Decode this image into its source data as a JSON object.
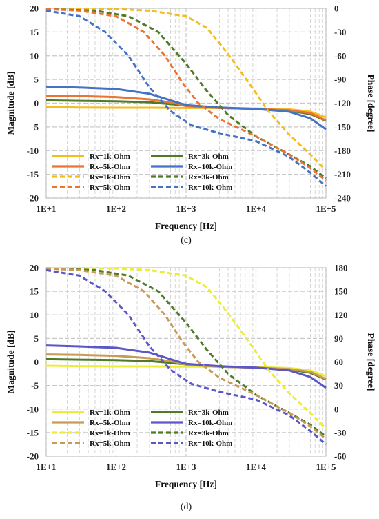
{
  "chart_data": [
    {
      "type": "line",
      "caption": "(c)",
      "x_label": "Frequency [Hz]",
      "y_label": "Magnitude [dB]",
      "y2_label": "Phase [degree]",
      "x_scale": "log",
      "x_ticks": [
        "1E+1",
        "1E+2",
        "1E+3",
        "1E+4",
        "1E+5"
      ],
      "xlim": [
        10,
        100000
      ],
      "ylim": [
        -20,
        20
      ],
      "y_ticks": [
        20,
        15,
        10,
        5,
        0,
        -5,
        -10,
        -15,
        -20
      ],
      "y2lim": [
        -240,
        0
      ],
      "y2_ticks": [
        0,
        -30,
        -60,
        -90,
        -120,
        -150,
        -180,
        -210,
        -240
      ],
      "grid": true,
      "legend_position": "lower-left",
      "colors": {
        "1k": "#f2bd1d",
        "3k": "#4f7a28",
        "5k": "#ea7433",
        "10k": "#4472c4"
      },
      "series": [
        {
          "name": "Rx=1k-Ohm",
          "axis": "left",
          "style": "solid",
          "color": "#f2bd1d",
          "points": [
            [
              10,
              -0.8
            ],
            [
              30,
              -0.9
            ],
            [
              100,
              -0.95
            ],
            [
              300,
              -0.95
            ],
            [
              1000,
              -1.0
            ],
            [
              3000,
              -1.0
            ],
            [
              10000,
              -1.1
            ],
            [
              30000,
              -1.3
            ],
            [
              60000,
              -1.8
            ],
            [
              100000,
              -3.0
            ]
          ]
        },
        {
          "name": "Rx=3k-Ohm",
          "axis": "left",
          "style": "solid",
          "color": "#4f7a28",
          "points": [
            [
              10,
              0.6
            ],
            [
              30,
              0.5
            ],
            [
              100,
              0.4
            ],
            [
              300,
              0.2
            ],
            [
              1000,
              -0.5
            ],
            [
              3000,
              -1.0
            ],
            [
              10000,
              -1.2
            ],
            [
              30000,
              -1.6
            ],
            [
              60000,
              -2.3
            ],
            [
              100000,
              -3.7
            ]
          ]
        },
        {
          "name": "Rx=5k-Ohm",
          "axis": "left",
          "style": "solid",
          "color": "#ea7433",
          "points": [
            [
              10,
              1.6
            ],
            [
              30,
              1.5
            ],
            [
              100,
              1.3
            ],
            [
              300,
              0.8
            ],
            [
              700,
              0.0
            ],
            [
              1000,
              -0.6
            ],
            [
              3000,
              -1.0
            ],
            [
              10000,
              -1.2
            ],
            [
              30000,
              -1.5
            ],
            [
              60000,
              -2.1
            ],
            [
              100000,
              -3.6
            ]
          ]
        },
        {
          "name": "Rx=10k-Ohm",
          "axis": "left",
          "style": "solid",
          "color": "#4472c4",
          "points": [
            [
              10,
              3.5
            ],
            [
              30,
              3.3
            ],
            [
              100,
              3.0
            ],
            [
              300,
              2.0
            ],
            [
              700,
              0.3
            ],
            [
              1000,
              -0.4
            ],
            [
              3000,
              -0.9
            ],
            [
              10000,
              -1.2
            ],
            [
              30000,
              -1.8
            ],
            [
              60000,
              -3.2
            ],
            [
              100000,
              -5.5
            ]
          ]
        },
        {
          "name": "Rx=1k-Ohm",
          "axis": "right",
          "style": "dashed",
          "color": "#f2bd1d",
          "points": [
            [
              10,
              -0.5
            ],
            [
              100,
              -1
            ],
            [
              300,
              -3
            ],
            [
              1000,
              -10
            ],
            [
              2000,
              -25
            ],
            [
              4000,
              -58
            ],
            [
              8000,
              -95
            ],
            [
              15000,
              -130
            ],
            [
              30000,
              -160
            ],
            [
              60000,
              -185
            ],
            [
              100000,
              -205
            ]
          ]
        },
        {
          "name": "Rx=3k-Ohm",
          "axis": "right",
          "style": "dashed",
          "color": "#4f7a28",
          "points": [
            [
              10,
              -1
            ],
            [
              50,
              -3
            ],
            [
              150,
              -10
            ],
            [
              400,
              -30
            ],
            [
              1000,
              -70
            ],
            [
              2000,
              -105
            ],
            [
              4000,
              -135
            ],
            [
              10000,
              -162
            ],
            [
              30000,
              -185
            ],
            [
              60000,
              -200
            ],
            [
              100000,
              -215
            ]
          ]
        },
        {
          "name": "Rx=5k-Ohm",
          "axis": "right",
          "style": "dashed",
          "color": "#ea7433",
          "points": [
            [
              10,
              -1
            ],
            [
              30,
              -3
            ],
            [
              100,
              -10
            ],
            [
              250,
              -30
            ],
            [
              500,
              -60
            ],
            [
              900,
              -95
            ],
            [
              1500,
              -120
            ],
            [
              3000,
              -140
            ],
            [
              10000,
              -162
            ],
            [
              30000,
              -185
            ],
            [
              60000,
              -202
            ],
            [
              100000,
              -218
            ]
          ]
        },
        {
          "name": "Rx=10k-Ohm",
          "axis": "right",
          "style": "dashed",
          "color": "#4472c4",
          "points": [
            [
              10,
              -3
            ],
            [
              30,
              -10
            ],
            [
              70,
              -30
            ],
            [
              150,
              -60
            ],
            [
              300,
              -100
            ],
            [
              600,
              -130
            ],
            [
              1200,
              -148
            ],
            [
              3000,
              -158
            ],
            [
              10000,
              -168
            ],
            [
              30000,
              -188
            ],
            [
              60000,
              -208
            ],
            [
              100000,
              -225
            ]
          ]
        }
      ]
    },
    {
      "type": "line",
      "caption": "(d)",
      "x_label": "Frequency [Hz]",
      "y_label": "Magnitude [dB]",
      "y2_label": "Phase [degree]",
      "x_scale": "log",
      "x_ticks": [
        "1E+1",
        "1E+2",
        "1E+3",
        "1E+4",
        "1E+5"
      ],
      "xlim": [
        10,
        100000
      ],
      "ylim": [
        -20,
        20
      ],
      "y_ticks": [
        20,
        15,
        10,
        5,
        0,
        -5,
        -10,
        -15,
        -20
      ],
      "y2lim": [
        -60,
        180
      ],
      "y2_ticks": [
        180,
        150,
        120,
        90,
        60,
        30,
        0,
        -30,
        -60
      ],
      "grid": true,
      "legend_position": "lower-left",
      "colors": {
        "1k": "#ecec3a",
        "3k": "#4f7a28",
        "5k": "#c99a55",
        "10k": "#5b57c8"
      },
      "series": [
        {
          "name": "Rx=1k-Ohm",
          "axis": "left",
          "style": "solid",
          "color": "#ecec3a",
          "points": [
            [
              10,
              -0.8
            ],
            [
              30,
              -0.9
            ],
            [
              100,
              -0.95
            ],
            [
              300,
              -0.95
            ],
            [
              1000,
              -1.0
            ],
            [
              3000,
              -1.0
            ],
            [
              10000,
              -1.1
            ],
            [
              30000,
              -1.3
            ],
            [
              60000,
              -1.8
            ],
            [
              100000,
              -3.0
            ]
          ]
        },
        {
          "name": "Rx=3k-Ohm",
          "axis": "left",
          "style": "solid",
          "color": "#4f7a28",
          "points": [
            [
              10,
              0.6
            ],
            [
              30,
              0.5
            ],
            [
              100,
              0.4
            ],
            [
              300,
              0.2
            ],
            [
              1000,
              -0.5
            ],
            [
              3000,
              -1.0
            ],
            [
              10000,
              -1.2
            ],
            [
              30000,
              -1.6
            ],
            [
              60000,
              -2.3
            ],
            [
              100000,
              -3.7
            ]
          ]
        },
        {
          "name": "Rx=5k-Ohm",
          "axis": "left",
          "style": "solid",
          "color": "#c99a55",
          "points": [
            [
              10,
              1.6
            ],
            [
              30,
              1.5
            ],
            [
              100,
              1.3
            ],
            [
              300,
              0.8
            ],
            [
              700,
              0.0
            ],
            [
              1000,
              -0.6
            ],
            [
              3000,
              -1.0
            ],
            [
              10000,
              -1.2
            ],
            [
              30000,
              -1.5
            ],
            [
              60000,
              -2.1
            ],
            [
              100000,
              -3.6
            ]
          ]
        },
        {
          "name": "Rx=10k-Ohm",
          "axis": "left",
          "style": "solid",
          "color": "#5b57c8",
          "points": [
            [
              10,
              3.5
            ],
            [
              30,
              3.3
            ],
            [
              100,
              3.0
            ],
            [
              300,
              2.0
            ],
            [
              700,
              0.3
            ],
            [
              1000,
              -0.4
            ],
            [
              3000,
              -0.9
            ],
            [
              10000,
              -1.2
            ],
            [
              30000,
              -1.8
            ],
            [
              60000,
              -3.2
            ],
            [
              100000,
              -5.5
            ]
          ]
        },
        {
          "name": "Rx=1k-Ohm",
          "axis": "right",
          "style": "dashed",
          "color": "#ecec3a",
          "points": [
            [
              10,
              179.5
            ],
            [
              100,
              179
            ],
            [
              300,
              177
            ],
            [
              1000,
              170
            ],
            [
              2000,
              155
            ],
            [
              4000,
              122
            ],
            [
              8000,
              85
            ],
            [
              15000,
              50
            ],
            [
              30000,
              20
            ],
            [
              60000,
              -5
            ],
            [
              100000,
              -25
            ]
          ]
        },
        {
          "name": "Rx=3k-Ohm",
          "axis": "right",
          "style": "dashed",
          "color": "#4f7a28",
          "points": [
            [
              10,
              179
            ],
            [
              50,
              177
            ],
            [
              150,
              170
            ],
            [
              400,
              150
            ],
            [
              1000,
              110
            ],
            [
              2000,
              75
            ],
            [
              4000,
              45
            ],
            [
              10000,
              18
            ],
            [
              30000,
              -5
            ],
            [
              60000,
              -20
            ],
            [
              100000,
              -35
            ]
          ]
        },
        {
          "name": "Rx=5k-Ohm",
          "axis": "right",
          "style": "dashed",
          "color": "#c99a55",
          "points": [
            [
              10,
              179
            ],
            [
              30,
              177
            ],
            [
              100,
              170
            ],
            [
              250,
              150
            ],
            [
              500,
              120
            ],
            [
              900,
              85
            ],
            [
              1500,
              60
            ],
            [
              3000,
              40
            ],
            [
              10000,
              18
            ],
            [
              30000,
              -5
            ],
            [
              60000,
              -22
            ],
            [
              100000,
              -38
            ]
          ]
        },
        {
          "name": "Rx=10k-Ohm",
          "axis": "right",
          "style": "dashed",
          "color": "#5b57c8",
          "points": [
            [
              10,
              177
            ],
            [
              30,
              170
            ],
            [
              70,
              150
            ],
            [
              150,
              120
            ],
            [
              300,
              80
            ],
            [
              600,
              50
            ],
            [
              1200,
              32
            ],
            [
              3000,
              22
            ],
            [
              10000,
              12
            ],
            [
              30000,
              -8
            ],
            [
              60000,
              -28
            ],
            [
              100000,
              -45
            ]
          ]
        }
      ]
    }
  ]
}
